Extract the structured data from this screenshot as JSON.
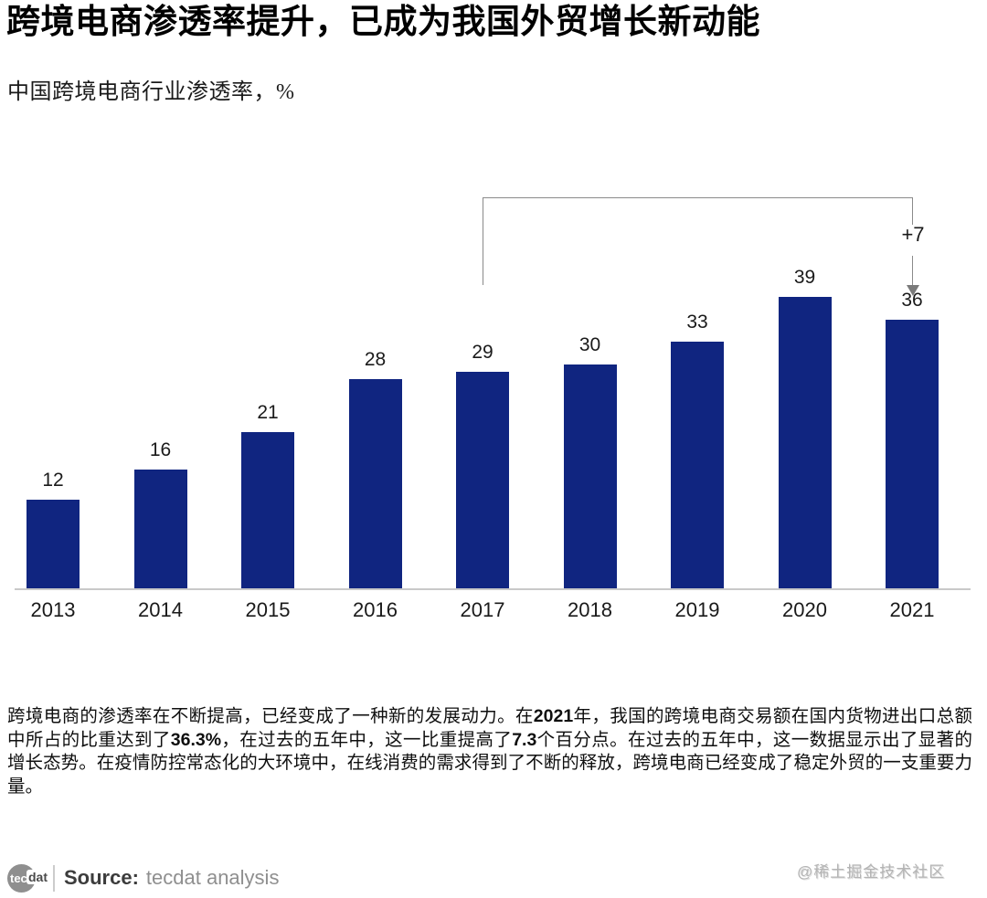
{
  "header": {
    "title": "跨境电商渗透率提升，已成为我国外贸增长新动能",
    "subtitle": "中国跨境电商行业渗透率，%"
  },
  "chart_data": {
    "type": "bar",
    "title": "中国跨境电商行业渗透率，%",
    "unit": "%",
    "categories": [
      "2013",
      "2014",
      "2015",
      "2016",
      "2017",
      "2018",
      "2019",
      "2020",
      "2021"
    ],
    "values": [
      12,
      16,
      21,
      28,
      29,
      30,
      33,
      39,
      36
    ],
    "bar_color": "#102580",
    "ylim": [
      0,
      40
    ],
    "grid": false,
    "legend": "none",
    "annotation": {
      "label": "+7",
      "from_category": "2017",
      "to_category": "2021"
    }
  },
  "paragraph": {
    "segments": [
      {
        "text": "跨境电商的渗透率在不断提高，已经变成了一种新的发展动力。在",
        "bold": false
      },
      {
        "text": "2021",
        "bold": true
      },
      {
        "text": "年，我国的跨境电商交易额在国内货物进出口总额中所占的比重达到了",
        "bold": false
      },
      {
        "text": "36.3%",
        "bold": true
      },
      {
        "text": "，在过去的五年中，这一比重提高了",
        "bold": false
      },
      {
        "text": "7.3",
        "bold": true
      },
      {
        "text": "个百分点。在过去的五年中，这一数据显示出了显著的增长态势。在疫情防控常态化的大环境中，在线消费的需求得到了不断的释放，跨境电商已经变成了稳定外贸的一支重要力量。",
        "bold": false
      }
    ]
  },
  "footer": {
    "logo_circle_text": "tec",
    "logo_suffix": "dat",
    "source_label": "Source:",
    "source_value": "tecdat analysis",
    "watermark": "@稀土掘金技术社区"
  }
}
